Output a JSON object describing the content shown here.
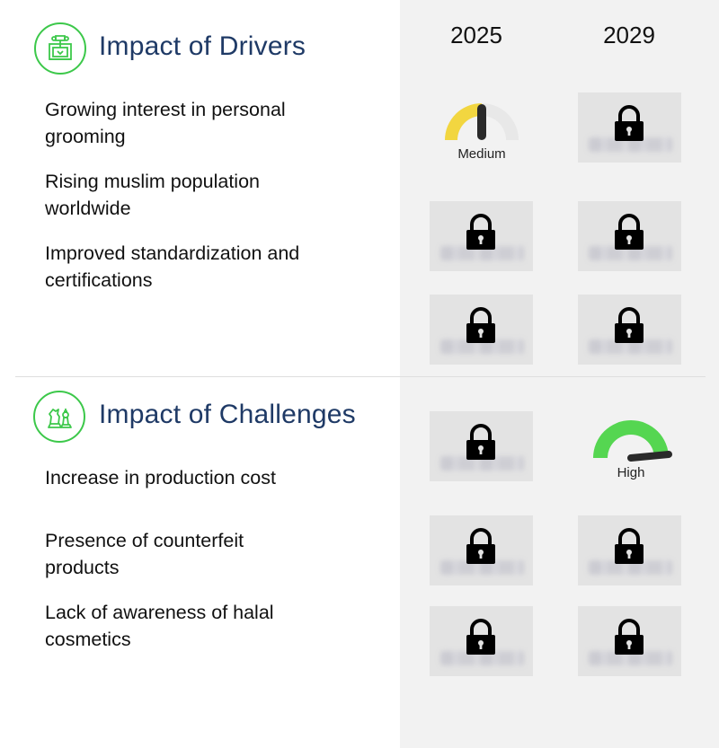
{
  "years": [
    "2025",
    "2029"
  ],
  "drivers": {
    "title": "Impact of Drivers",
    "items": [
      {
        "line1": "Growing interest in personal",
        "line2": "grooming"
      },
      {
        "line1": "Rising muslim population",
        "line2": "worldwide"
      },
      {
        "line1": "Improved standardization and",
        "line2": "certifications"
      }
    ],
    "gauge_2025_first": {
      "label": "Medium",
      "level": 0.5,
      "color": "#f2d640"
    }
  },
  "challenges": {
    "title": "Impact of Challenges",
    "items": [
      {
        "line1": "Increase in production cost",
        "line2": ""
      },
      {
        "line1": "Presence of counterfeit",
        "line2": "products"
      },
      {
        "line1": "Lack of awareness of halal",
        "line2": "cosmetics"
      }
    ],
    "gauge_2029_first": {
      "label": "High",
      "level": 0.85,
      "color": "#55d651"
    }
  },
  "icons": {
    "drivers": "drivers-icon",
    "challenges": "chess-pieces-icon",
    "locked": "lock-icon"
  },
  "colors": {
    "accent": "#3cc84a",
    "title": "#1f3a66",
    "panel": "#f2f2f2"
  }
}
